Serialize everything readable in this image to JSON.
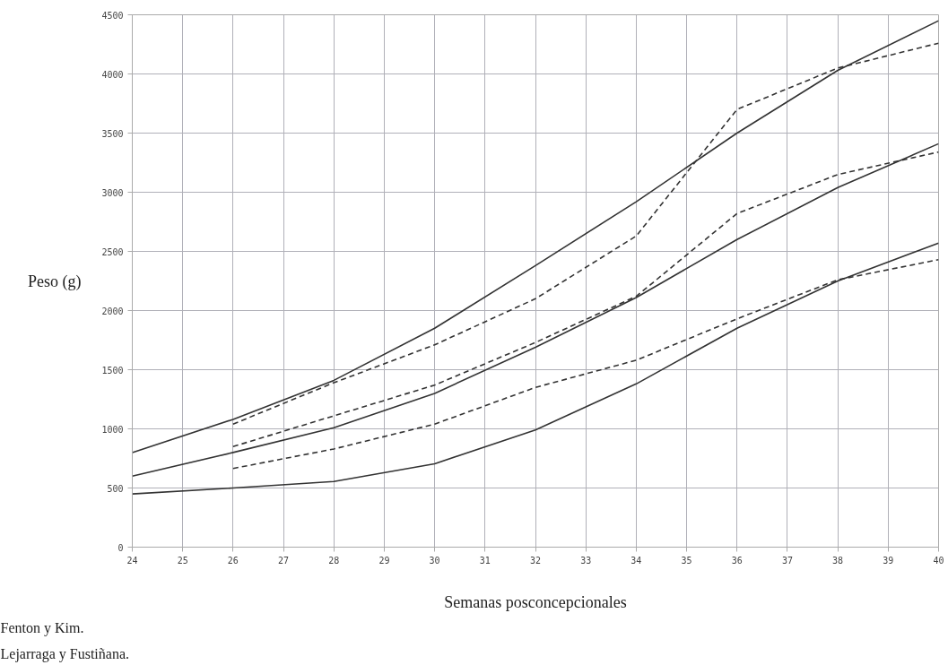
{
  "chart_data": {
    "type": "line",
    "xlabel": "Semanas posconcepcionales",
    "ylabel": "Peso (g)",
    "x": [
      24,
      26,
      28,
      30,
      32,
      34,
      36,
      38,
      40
    ],
    "series": [
      {
        "color": "#333333",
        "line_style": "solid",
        "values": [
          800,
          1080,
          1410,
          1850,
          2380,
          2920,
          3500,
          4030,
          4450
        ]
      },
      {
        "color": "#333333",
        "line_style": "solid",
        "values": [
          600,
          800,
          1010,
          1300,
          1690,
          2110,
          2600,
          3040,
          3410
        ]
      },
      {
        "color": "#333333",
        "line_style": "solid",
        "values": [
          450,
          500,
          555,
          705,
          990,
          1380,
          1850,
          2250,
          2570
        ]
      },
      {
        "color": "#333333",
        "line_style": "dashed",
        "values": [
          null,
          1040,
          1390,
          1710,
          2100,
          2630,
          3700,
          4050,
          4260
        ]
      },
      {
        "color": "#333333",
        "line_style": "dashed",
        "values": [
          null,
          850,
          1110,
          1370,
          1730,
          2120,
          2820,
          3150,
          3340
        ]
      },
      {
        "color": "#333333",
        "line_style": "dashed",
        "values": [
          null,
          665,
          830,
          1040,
          1350,
          1580,
          1930,
          2260,
          2430
        ]
      }
    ],
    "xlim": [
      24,
      40
    ],
    "ylim": [
      0,
      4500
    ],
    "xticks": [
      24,
      25,
      26,
      27,
      28,
      29,
      30,
      31,
      32,
      33,
      34,
      35,
      36,
      37,
      38,
      39,
      40
    ],
    "yticks": [
      0,
      500,
      1000,
      1500,
      2000,
      2500,
      3000,
      3500,
      4000,
      4500
    ],
    "grid": true,
    "marker": "none",
    "annotations": [
      "Fenton y Kim.",
      "Lejarraga y Fustiñana."
    ]
  }
}
